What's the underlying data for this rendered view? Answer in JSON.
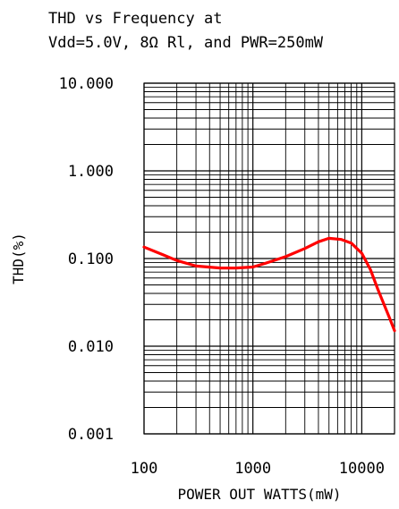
{
  "chart_data": {
    "type": "line",
    "title_lines": [
      "THD vs Frequency at",
      "Vdd=5.0V, 8Ω Rl, and PWR=250mW"
    ],
    "xlabel": "POWER OUT WATTS(mW)",
    "ylabel": "THD(%)",
    "x_scale": "log",
    "y_scale": "log",
    "xlim": [
      100,
      20000
    ],
    "ylim": [
      0.001,
      10
    ],
    "x_ticks": [
      {
        "value": 100,
        "label": "100"
      },
      {
        "value": 1000,
        "label": "1000"
      },
      {
        "value": 10000,
        "label": "10000"
      }
    ],
    "y_ticks": [
      {
        "value": 10,
        "label": "10.000"
      },
      {
        "value": 1,
        "label": "1.000"
      },
      {
        "value": 0.1,
        "label": "0.100"
      },
      {
        "value": 0.01,
        "label": "0.010"
      },
      {
        "value": 0.001,
        "label": "0.001"
      }
    ],
    "grid": true,
    "series": [
      {
        "color": "#ff0000",
        "x": [
          100,
          150,
          200,
          300,
          500,
          700,
          1000,
          1300,
          2000,
          3000,
          4000,
          5000,
          6500,
          8000,
          10000,
          12000,
          14000,
          16000,
          18000,
          20000
        ],
        "y": [
          0.135,
          0.11,
          0.095,
          0.082,
          0.078,
          0.078,
          0.08,
          0.088,
          0.105,
          0.13,
          0.155,
          0.17,
          0.165,
          0.15,
          0.115,
          0.075,
          0.045,
          0.03,
          0.021,
          0.015
        ]
      }
    ]
  }
}
